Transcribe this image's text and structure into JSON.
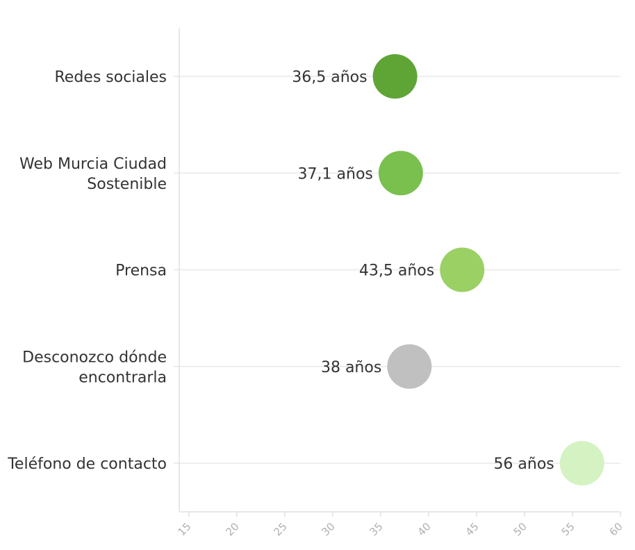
{
  "chart_data": {
    "type": "scatter",
    "orientation": "horizontal",
    "categories": [
      [
        "Redes sociales"
      ],
      [
        "Web Murcia Ciudad",
        "Sostenible"
      ],
      [
        "Prensa"
      ],
      [
        "Desconozco dónde",
        "encontrarla"
      ],
      [
        "Teléfono de contacto"
      ]
    ],
    "values": [
      36.5,
      37.1,
      43.5,
      38,
      56
    ],
    "data_labels": [
      "36,5 años",
      "37,1 años",
      "43,5 años",
      "38 años",
      "56 años"
    ],
    "colors": [
      "#5fa536",
      "#79c04f",
      "#9bd064",
      "#c0c0c0",
      "#d5f2c2"
    ],
    "x_ticks": [
      "15",
      "20",
      "25",
      "30",
      "35",
      "40",
      "45",
      "50",
      "55",
      "60"
    ],
    "xlim": [
      14,
      60
    ],
    "grid": true,
    "legend": "none"
  }
}
